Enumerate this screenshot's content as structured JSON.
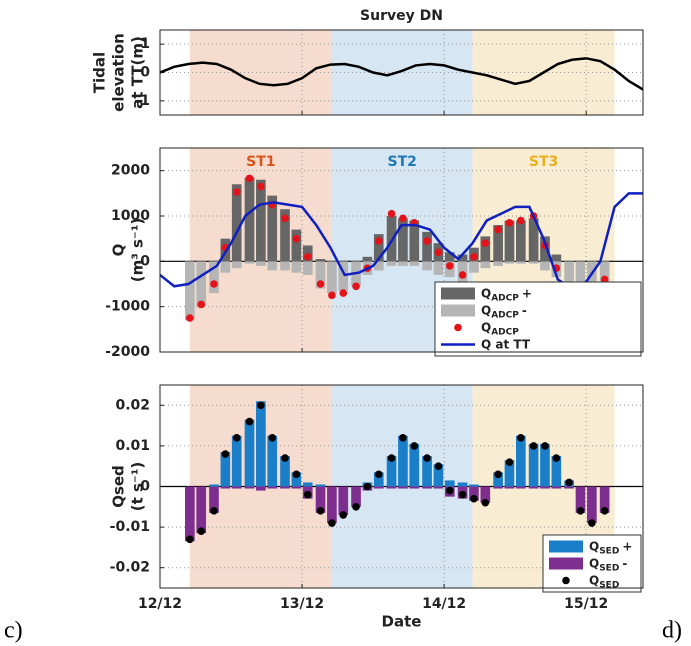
{
  "panel_labels": [
    "c)",
    "d)"
  ],
  "chart_data": [
    {
      "type": "line",
      "title": "Survey DN",
      "ylabel": [
        "Tidal",
        "elevation",
        "at TT(m)"
      ],
      "xlim": [
        0,
        3.4
      ],
      "ylim": [
        -1.5,
        1.5
      ],
      "yticks": [
        -1,
        0,
        1
      ],
      "grid": true,
      "color": "#000000",
      "x": [
        0,
        0.1,
        0.2,
        0.3,
        0.4,
        0.5,
        0.6,
        0.7,
        0.8,
        0.9,
        1.0,
        1.1,
        1.2,
        1.3,
        1.4,
        1.5,
        1.6,
        1.7,
        1.8,
        1.9,
        2.0,
        2.1,
        2.2,
        2.3,
        2.4,
        2.5,
        2.6,
        2.7,
        2.8,
        2.9,
        3.0,
        3.1,
        3.2,
        3.3,
        3.4
      ],
      "values": [
        0,
        0.2,
        0.3,
        0.35,
        0.3,
        0.1,
        -0.2,
        -0.4,
        -0.45,
        -0.4,
        -0.2,
        0.15,
        0.28,
        0.3,
        0.2,
        0,
        -0.1,
        0.05,
        0.25,
        0.3,
        0.25,
        0.1,
        0,
        -0.1,
        -0.25,
        -0.4,
        -0.3,
        0,
        0.3,
        0.45,
        0.5,
        0.4,
        0.1,
        -0.3,
        -0.6
      ]
    },
    {
      "type": "bar",
      "ylabel": [
        "Q",
        "(m³ s⁻¹)"
      ],
      "xlim": [
        0,
        3.4
      ],
      "ylim": [
        -2000,
        2500
      ],
      "yticks": [
        -2000,
        -1000,
        0,
        1000,
        2000
      ],
      "grid": true,
      "legend": "lower right",
      "regions": [
        {
          "name": "ST1",
          "start": 0.21,
          "end": 1.21,
          "color": "#f5dccf",
          "label_color": "#d9541a"
        },
        {
          "name": "ST2",
          "start": 1.21,
          "end": 2.2,
          "color": "#d7e6f3",
          "label_color": "#1f77b4"
        },
        {
          "name": "ST3",
          "start": 2.2,
          "end": 3.2,
          "color": "#f8ecd2",
          "label_color": "#e8b020"
        }
      ],
      "x": [
        0.21,
        0.29,
        0.38,
        0.46,
        0.54,
        0.63,
        0.71,
        0.79,
        0.88,
        0.96,
        1.04,
        1.13,
        1.21,
        1.29,
        1.38,
        1.46,
        1.54,
        1.63,
        1.71,
        1.79,
        1.88,
        1.96,
        2.04,
        2.13,
        2.21,
        2.29,
        2.38,
        2.46,
        2.54,
        2.63,
        2.71,
        2.79,
        2.88,
        2.96,
        3.04,
        3.13
      ],
      "series": [
        {
          "name": "Q",
          "name_sub": "ADCP",
          "name_suffix": "+",
          "kind": "bar",
          "color": "#666666",
          "values": [
            0,
            0,
            0,
            500,
            1700,
            1850,
            1800,
            1450,
            1150,
            700,
            350,
            50,
            0,
            0,
            0,
            100,
            600,
            1000,
            950,
            900,
            650,
            400,
            200,
            150,
            300,
            550,
            800,
            900,
            900,
            950,
            550,
            150,
            0,
            0,
            0,
            0
          ]
        },
        {
          "name": "Q",
          "name_sub": "ADCP",
          "name_suffix": "-",
          "kind": "bar",
          "color": "#b5b5b5",
          "values": [
            -1300,
            -1000,
            -700,
            -250,
            -150,
            -50,
            -100,
            -200,
            -200,
            -250,
            -300,
            -600,
            -700,
            -650,
            -550,
            -300,
            -200,
            -100,
            -100,
            -100,
            -200,
            -300,
            -350,
            -450,
            -250,
            -150,
            -100,
            -50,
            -50,
            -50,
            -200,
            -350,
            -700,
            -850,
            -650,
            -450
          ]
        },
        {
          "name": "Q",
          "name_sub": "ADCP",
          "kind": "scatter",
          "color": "#e3131b",
          "values": [
            -1250,
            -950,
            -500,
            300,
            1530,
            1830,
            1650,
            1250,
            950,
            500,
            100,
            -500,
            -750,
            -700,
            -550,
            -150,
            450,
            1050,
            950,
            850,
            450,
            200,
            -100,
            -300,
            100,
            400,
            700,
            850,
            900,
            1000,
            350,
            -150,
            -700,
            -850,
            -650,
            -400
          ]
        },
        {
          "name": "Q at TT",
          "kind": "line",
          "color": "#1020c0",
          "x": [
            0,
            0.1,
            0.2,
            0.3,
            0.4,
            0.5,
            0.6,
            0.7,
            0.8,
            0.9,
            1.0,
            1.1,
            1.2,
            1.3,
            1.4,
            1.5,
            1.6,
            1.7,
            1.8,
            1.9,
            2.0,
            2.1,
            2.2,
            2.3,
            2.4,
            2.5,
            2.6,
            2.7,
            2.8,
            2.9,
            3.0,
            3.1,
            3.2,
            3.3,
            3.4
          ],
          "values": [
            -300,
            -550,
            -500,
            -300,
            -100,
            400,
            1000,
            1250,
            1300,
            1250,
            1200,
            800,
            300,
            -300,
            -250,
            -100,
            300,
            800,
            800,
            700,
            300,
            50,
            400,
            900,
            1050,
            1200,
            1200,
            500,
            -400,
            -600,
            -450,
            0,
            1200,
            1500,
            1500
          ]
        }
      ]
    },
    {
      "type": "bar",
      "ylabel": [
        "Qsed",
        "(t s⁻¹)"
      ],
      "xlabel": "Date",
      "xlim": [
        0,
        3.4
      ],
      "ylim": [
        -0.025,
        0.025
      ],
      "yticks": [
        -0.02,
        -0.01,
        0,
        0.01,
        0.02
      ],
      "grid": true,
      "legend": "lower right",
      "xticks": [
        {
          "value": 0,
          "label": "12/12"
        },
        {
          "value": 1,
          "label": "13/12"
        },
        {
          "value": 2,
          "label": "14/12"
        },
        {
          "value": 3,
          "label": "15/12"
        }
      ],
      "x": [
        0.21,
        0.29,
        0.38,
        0.46,
        0.54,
        0.63,
        0.71,
        0.79,
        0.88,
        0.96,
        1.04,
        1.13,
        1.21,
        1.29,
        1.38,
        1.46,
        1.54,
        1.63,
        1.71,
        1.79,
        1.88,
        1.96,
        2.04,
        2.13,
        2.21,
        2.29,
        2.38,
        2.46,
        2.54,
        2.63,
        2.71,
        2.79,
        2.88,
        2.96,
        3.04,
        3.13
      ],
      "series": [
        {
          "name": "Q",
          "name_sub": "SED",
          "name_suffix": "+",
          "kind": "bar",
          "color": "#1b7ec9",
          "values": [
            0,
            0,
            0.0005,
            0.0085,
            0.0125,
            0.0165,
            0.021,
            0.0125,
            0.0075,
            0.0035,
            0.001,
            0.0005,
            0,
            0,
            0,
            0.001,
            0.0035,
            0.0075,
            0.0125,
            0.0105,
            0.0075,
            0.0055,
            0.0015,
            0.001,
            0.0005,
            0,
            0.0035,
            0.0065,
            0.0125,
            0.0105,
            0.0105,
            0.0075,
            0.0015,
            0,
            0,
            0
          ]
        },
        {
          "name": "Q",
          "name_sub": "SED",
          "name_suffix": "-",
          "kind": "bar",
          "color": "#7e2e8f",
          "values": [
            -0.0135,
            -0.0115,
            -0.0065,
            -0.0005,
            -0.0005,
            -0.0005,
            -0.001,
            -0.0005,
            -0.0005,
            -0.0005,
            -0.003,
            -0.0065,
            -0.009,
            -0.007,
            -0.005,
            -0.001,
            -0.0005,
            -0.0005,
            -0.0005,
            -0.0005,
            -0.0005,
            -0.0005,
            -0.0025,
            -0.003,
            -0.0035,
            -0.004,
            -0.0005,
            -0.0005,
            -0.0005,
            -0.0005,
            -0.0005,
            -0.0005,
            -0.0005,
            -0.0065,
            -0.009,
            -0.0065
          ]
        },
        {
          "name": "Q",
          "name_sub": "SED",
          "kind": "scatter",
          "color": "#000000",
          "values": [
            -0.013,
            -0.011,
            -0.006,
            0.008,
            0.012,
            0.016,
            0.02,
            0.012,
            0.007,
            0.003,
            -0.002,
            -0.006,
            -0.009,
            -0.007,
            -0.005,
            0,
            0.003,
            0.007,
            0.012,
            0.01,
            0.007,
            0.005,
            -0.001,
            -0.002,
            -0.003,
            -0.004,
            0.003,
            0.006,
            0.012,
            0.01,
            0.01,
            0.007,
            0.001,
            -0.006,
            -0.009,
            -0.006
          ]
        }
      ]
    }
  ]
}
